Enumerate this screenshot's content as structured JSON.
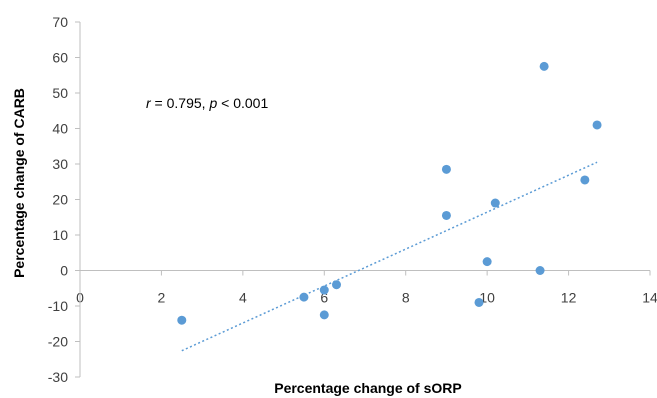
{
  "chart_data": {
    "type": "scatter",
    "title": "",
    "xlabel": "Percentage change of sORP",
    "ylabel": "Percentage change of CARB",
    "xlim": [
      0,
      14
    ],
    "ylim": [
      -30,
      70
    ],
    "x_ticks": [
      "0",
      "2",
      "4",
      "6",
      "8",
      "10",
      "12",
      "14"
    ],
    "y_ticks": [
      "70",
      "60",
      "50",
      "40",
      "30",
      "20",
      "10",
      "0",
      "-10",
      "-20",
      "-30"
    ],
    "x_tick_values": [
      0,
      2,
      4,
      6,
      8,
      10,
      12,
      14
    ],
    "y_tick_values": [
      70,
      60,
      50,
      40,
      30,
      20,
      10,
      0,
      -10,
      -20,
      -30
    ],
    "grid": false,
    "series": [
      {
        "color": "#5b9bd5",
        "points": [
          {
            "x": 2.5,
            "y": -14
          },
          {
            "x": 5.5,
            "y": -7.5
          },
          {
            "x": 6.0,
            "y": -5.5
          },
          {
            "x": 6.0,
            "y": -12.5
          },
          {
            "x": 6.3,
            "y": -4
          },
          {
            "x": 9.0,
            "y": 28.5
          },
          {
            "x": 9.0,
            "y": 15.5
          },
          {
            "x": 9.8,
            "y": -9
          },
          {
            "x": 10.0,
            "y": 2.5
          },
          {
            "x": 10.2,
            "y": 19
          },
          {
            "x": 11.3,
            "y": 0
          },
          {
            "x": 11.4,
            "y": 57.5
          },
          {
            "x": 12.4,
            "y": 25.5
          },
          {
            "x": 12.7,
            "y": 41
          }
        ]
      }
    ],
    "trendline": {
      "type": "linear",
      "style": "dotted",
      "color": "#5b9bd5",
      "x_range": [
        2.5,
        12.7
      ]
    },
    "annotation": {
      "r_symbol": "r",
      "r_text": " = 0.795, ",
      "p_symbol": "p",
      "p_text": " < 0.001"
    }
  }
}
